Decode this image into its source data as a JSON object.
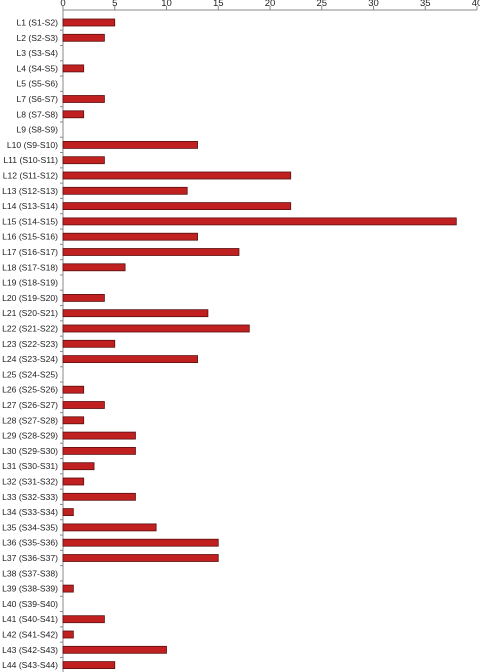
{
  "chart_data": {
    "type": "bar",
    "orientation": "horizontal",
    "categories": [
      "L1 (S1-S2)",
      "L2 (S2-S3)",
      "L3 (S3-S4)",
      "L4 (S4-S5)",
      "L5 (S5-S6)",
      "L7 (S6-S7)",
      "L8 (S7-S8)",
      "L9 (S8-S9)",
      "L10 (S9-S10)",
      "L11 (S10-S11)",
      "L12 (S11-S12)",
      "L13 (S12-S13)",
      "L14 (S13-S14)",
      "L15 (S14-S15)",
      "L16 (S15-S16)",
      "L17 (S16-S17)",
      "L18 (S17-S18)",
      "L19 (S18-S19)",
      "L20 (S19-S20)",
      "L21 (S20-S21)",
      "L22 (S21-S22)",
      "L23 (S22-S23)",
      "L24 (S23-S24)",
      "L25 (S24-S25)",
      "L26 (S25-S26)",
      "L27 (S26-S27)",
      "L28 (S27-S28)",
      "L29 (S28-S29)",
      "L30 (S29-S30)",
      "L31 (S30-S31)",
      "L32 (S31-S32)",
      "L33 (S32-S33)",
      "L34 (S33-S34)",
      "L35 (S34-S35)",
      "L36 (S35-S36)",
      "L37 (S36-S37)",
      "L38 (S37-S38)",
      "L39 (S38-S39)",
      "L40 (S39-S40)",
      "L41 (S40-S41)",
      "L42 (S41-S42)",
      "L43 (S42-S43)",
      "L44 (S43-S44)"
    ],
    "values": [
      5,
      4,
      0,
      2,
      0,
      4,
      2,
      0,
      13,
      4,
      22,
      12,
      22,
      38,
      13,
      17,
      6,
      0,
      4,
      14,
      18,
      5,
      13,
      0,
      2,
      4,
      2,
      7,
      7,
      3,
      2,
      7,
      1,
      9,
      15,
      15,
      0,
      1,
      0,
      4,
      1,
      10,
      5
    ],
    "xlim": [
      0,
      40
    ],
    "xticks": [
      0,
      5,
      10,
      15,
      20,
      25,
      30,
      35,
      40
    ],
    "x_axis_position": "top",
    "grid": false,
    "legend": "none",
    "bar_color": "#c0201f",
    "bar_edge_color": "#5a0f0f",
    "title": "",
    "xlabel": "",
    "ylabel": ""
  }
}
